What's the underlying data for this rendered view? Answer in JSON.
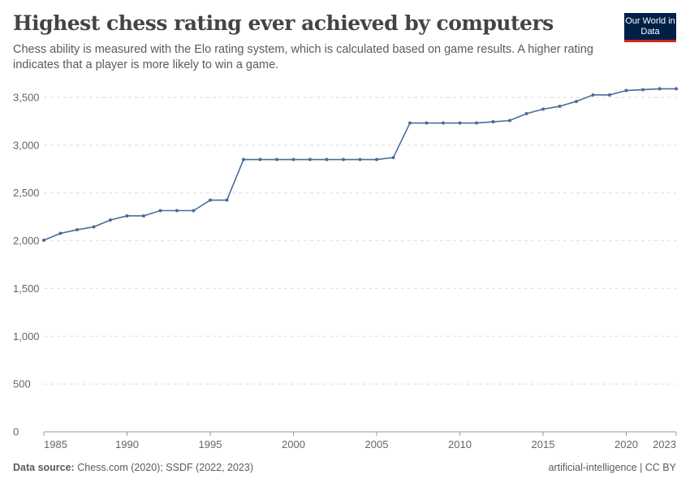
{
  "header": {
    "title": "Highest chess rating ever achieved by computers",
    "subtitle": "Chess ability is measured with the Elo rating system, which is calculated based on game results. A higher rating indicates that a player is more likely to win a game.",
    "logo": "Our World in Data"
  },
  "footer": {
    "source_label": "Data source:",
    "source": "Chess.com (2020); SSDF (2022, 2023)",
    "right": "artificial-intelligence | CC BY"
  },
  "chart_data": {
    "type": "line",
    "title": "Highest chess rating ever achieved by computers",
    "xlim": [
      1985,
      2023
    ],
    "ylim": [
      0,
      3500
    ],
    "yticks": [
      0,
      500,
      1000,
      1500,
      2000,
      2500,
      3000,
      3500
    ],
    "ytick_labels": [
      "0",
      "500",
      "1,000",
      "1,500",
      "2,000",
      "2,500",
      "3,000",
      "3,500"
    ],
    "xticks": [
      1985,
      1990,
      1995,
      2000,
      2005,
      2010,
      2015,
      2020,
      2023
    ],
    "grid": "horizontal dashed",
    "color": "#4c6a9c",
    "x": [
      1985,
      1986,
      1987,
      1988,
      1989,
      1990,
      1991,
      1992,
      1993,
      1994,
      1995,
      1996,
      1997,
      1998,
      1999,
      2000,
      2001,
      2002,
      2003,
      2004,
      2005,
      2006,
      2007,
      2008,
      2009,
      2010,
      2011,
      2012,
      2013,
      2014,
      2015,
      2016,
      2017,
      2018,
      2019,
      2020,
      2021,
      2022,
      2023
    ],
    "values": [
      2005,
      2077,
      2115,
      2145,
      2217,
      2260,
      2260,
      2315,
      2315,
      2315,
      2425,
      2425,
      2850,
      2850,
      2850,
      2850,
      2850,
      2850,
      2850,
      2850,
      2850,
      2870,
      3232,
      3232,
      3232,
      3232,
      3232,
      3245,
      3258,
      3330,
      3377,
      3407,
      3458,
      3526,
      3526,
      3572,
      3581,
      3590,
      3590
    ]
  }
}
